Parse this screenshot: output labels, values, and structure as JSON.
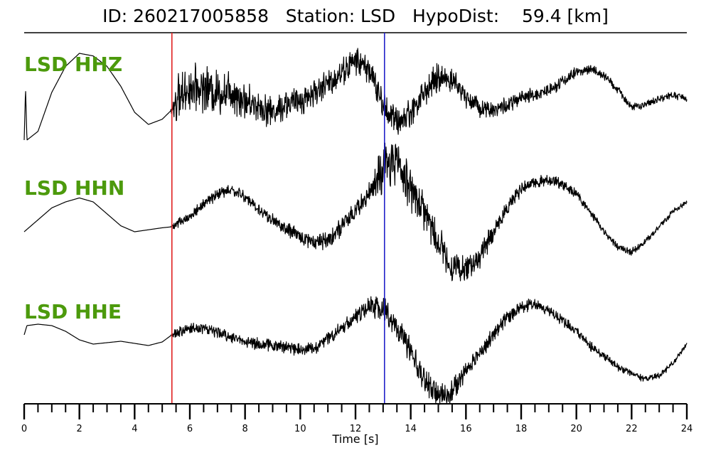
{
  "header": {
    "title": "ID: 260217005858   Station: LSD   HypoDist:    59.4 [km]"
  },
  "colors": {
    "label": "#4c9a0c",
    "p_pick": "#e02020",
    "s_pick": "#2020c8",
    "trace": "#000000"
  },
  "chart_data": {
    "type": "line",
    "title": "ID: 260217005858   Station: LSD   HypoDist:    59.4 [km]",
    "xlabel": "Time [s]",
    "ylabel": "",
    "xlim": [
      0,
      24
    ],
    "x_ticks": [
      0,
      2,
      4,
      6,
      8,
      10,
      12,
      14,
      16,
      18,
      20,
      22,
      24
    ],
    "minor_tick_step": 0.5,
    "grid": false,
    "picks": [
      {
        "phase": "P",
        "time": 5.35
      },
      {
        "phase": "S",
        "time": 13.05
      }
    ],
    "series": [
      {
        "name": "LSD HHZ",
        "envelope": [
          [
            0,
            0.0
          ],
          [
            0.05,
            0.6
          ],
          [
            0.1,
            0.0
          ],
          [
            0.5,
            0.1
          ],
          [
            1.0,
            0.55
          ],
          [
            1.5,
            0.85
          ],
          [
            2.0,
            1.0
          ],
          [
            2.5,
            0.97
          ],
          [
            3.0,
            0.85
          ],
          [
            3.5,
            0.62
          ],
          [
            4.0,
            0.32
          ],
          [
            4.5,
            0.18
          ],
          [
            5.0,
            0.24
          ],
          [
            5.35,
            0.35
          ],
          [
            5.6,
            0.5
          ],
          [
            6.0,
            0.6
          ],
          [
            6.5,
            0.6
          ],
          [
            7.0,
            0.55
          ],
          [
            7.5,
            0.58
          ],
          [
            8.0,
            0.45
          ],
          [
            8.5,
            0.4
          ],
          [
            9.0,
            0.32
          ],
          [
            9.5,
            0.42
          ],
          [
            10.0,
            0.45
          ],
          [
            10.5,
            0.55
          ],
          [
            11.0,
            0.65
          ],
          [
            11.5,
            0.78
          ],
          [
            12.0,
            0.92
          ],
          [
            12.5,
            0.82
          ],
          [
            13.0,
            0.4
          ],
          [
            13.5,
            0.2
          ],
          [
            14.0,
            0.32
          ],
          [
            14.5,
            0.55
          ],
          [
            15.0,
            0.72
          ],
          [
            15.5,
            0.7
          ],
          [
            16.0,
            0.5
          ],
          [
            16.5,
            0.38
          ],
          [
            17.0,
            0.35
          ],
          [
            17.5,
            0.4
          ],
          [
            18.0,
            0.48
          ],
          [
            18.5,
            0.52
          ],
          [
            19.0,
            0.58
          ],
          [
            19.5,
            0.68
          ],
          [
            20.0,
            0.78
          ],
          [
            20.5,
            0.82
          ],
          [
            21.0,
            0.74
          ],
          [
            21.5,
            0.58
          ],
          [
            22.0,
            0.38
          ],
          [
            22.5,
            0.4
          ],
          [
            23.0,
            0.48
          ],
          [
            23.5,
            0.52
          ],
          [
            24.0,
            0.48
          ]
        ],
        "noise": [
          [
            0,
            0
          ],
          [
            5.3,
            0
          ],
          [
            5.5,
            0.2
          ],
          [
            7.5,
            0.2
          ],
          [
            8.5,
            0.14
          ],
          [
            12.0,
            0.12
          ],
          [
            13.0,
            0.13
          ],
          [
            15.0,
            0.13
          ],
          [
            16.0,
            0.09
          ],
          [
            19.0,
            0.06
          ],
          [
            21.0,
            0.04
          ],
          [
            24.0,
            0.03
          ]
        ]
      },
      {
        "name": "LSD HHN",
        "envelope": [
          [
            0,
            0.0
          ],
          [
            0.5,
            0.12
          ],
          [
            1.0,
            0.24
          ],
          [
            1.5,
            0.3
          ],
          [
            2.0,
            0.34
          ],
          [
            2.5,
            0.3
          ],
          [
            3.0,
            0.18
          ],
          [
            3.5,
            0.06
          ],
          [
            4.0,
            0.0
          ],
          [
            4.5,
            0.02
          ],
          [
            5.0,
            0.04
          ],
          [
            5.35,
            0.05
          ],
          [
            6.0,
            0.15
          ],
          [
            6.5,
            0.28
          ],
          [
            7.0,
            0.38
          ],
          [
            7.5,
            0.42
          ],
          [
            8.0,
            0.35
          ],
          [
            8.5,
            0.22
          ],
          [
            9.0,
            0.12
          ],
          [
            9.5,
            0.02
          ],
          [
            10.0,
            -0.05
          ],
          [
            10.5,
            -0.1
          ],
          [
            11.0,
            -0.08
          ],
          [
            11.5,
            0.05
          ],
          [
            12.0,
            0.2
          ],
          [
            12.5,
            0.4
          ],
          [
            13.0,
            0.6
          ],
          [
            13.5,
            0.72
          ],
          [
            14.0,
            0.45
          ],
          [
            14.5,
            0.2
          ],
          [
            15.0,
            -0.1
          ],
          [
            15.5,
            -0.35
          ],
          [
            16.0,
            -0.38
          ],
          [
            16.5,
            -0.25
          ],
          [
            17.0,
            0.0
          ],
          [
            17.5,
            0.25
          ],
          [
            18.0,
            0.42
          ],
          [
            18.5,
            0.5
          ],
          [
            19.0,
            0.52
          ],
          [
            19.5,
            0.48
          ],
          [
            20.0,
            0.38
          ],
          [
            20.5,
            0.2
          ],
          [
            21.0,
            0.0
          ],
          [
            21.5,
            -0.15
          ],
          [
            22.0,
            -0.2
          ],
          [
            22.5,
            -0.1
          ],
          [
            23.0,
            0.05
          ],
          [
            23.5,
            0.2
          ],
          [
            24.0,
            0.3
          ]
        ],
        "noise": [
          [
            0,
            0
          ],
          [
            5.3,
            0
          ],
          [
            5.5,
            0.04
          ],
          [
            9.0,
            0.05
          ],
          [
            12.5,
            0.08
          ],
          [
            13.0,
            0.2
          ],
          [
            14.0,
            0.18
          ],
          [
            16.0,
            0.1
          ],
          [
            18.0,
            0.05
          ],
          [
            21.0,
            0.03
          ],
          [
            24.0,
            0.02
          ]
        ]
      },
      {
        "name": "LSD HHE",
        "envelope": [
          [
            0,
            0.15
          ],
          [
            0.1,
            0.28
          ],
          [
            0.5,
            0.3
          ],
          [
            1.0,
            0.28
          ],
          [
            1.5,
            0.2
          ],
          [
            2.0,
            0.08
          ],
          [
            2.5,
            0.02
          ],
          [
            3.0,
            0.04
          ],
          [
            3.5,
            0.06
          ],
          [
            4.0,
            0.03
          ],
          [
            4.5,
            0.0
          ],
          [
            5.0,
            0.05
          ],
          [
            5.35,
            0.15
          ],
          [
            6.0,
            0.24
          ],
          [
            6.5,
            0.25
          ],
          [
            7.0,
            0.18
          ],
          [
            7.5,
            0.12
          ],
          [
            8.0,
            0.06
          ],
          [
            8.5,
            0.02
          ],
          [
            9.0,
            0.0
          ],
          [
            9.5,
            -0.02
          ],
          [
            10.0,
            -0.05
          ],
          [
            10.5,
            -0.04
          ],
          [
            11.0,
            0.1
          ],
          [
            11.5,
            0.25
          ],
          [
            12.0,
            0.4
          ],
          [
            12.5,
            0.55
          ],
          [
            13.0,
            0.52
          ],
          [
            13.5,
            0.25
          ],
          [
            14.0,
            -0.1
          ],
          [
            14.5,
            -0.5
          ],
          [
            15.0,
            -0.72
          ],
          [
            15.5,
            -0.65
          ],
          [
            16.0,
            -0.35
          ],
          [
            16.5,
            -0.1
          ],
          [
            17.0,
            0.15
          ],
          [
            17.5,
            0.4
          ],
          [
            18.0,
            0.55
          ],
          [
            18.5,
            0.58
          ],
          [
            19.0,
            0.5
          ],
          [
            19.5,
            0.35
          ],
          [
            20.0,
            0.2
          ],
          [
            20.5,
            0.0
          ],
          [
            21.0,
            -0.15
          ],
          [
            21.5,
            -0.3
          ],
          [
            22.0,
            -0.4
          ],
          [
            22.5,
            -0.48
          ],
          [
            23.0,
            -0.42
          ],
          [
            23.5,
            -0.25
          ],
          [
            24.0,
            0.02
          ]
        ],
        "noise": [
          [
            0,
            0
          ],
          [
            5.3,
            0
          ],
          [
            5.5,
            0.06
          ],
          [
            10.0,
            0.07
          ],
          [
            12.0,
            0.08
          ],
          [
            13.0,
            0.13
          ],
          [
            15.0,
            0.15
          ],
          [
            16.0,
            0.1
          ],
          [
            19.0,
            0.06
          ],
          [
            22.0,
            0.04
          ],
          [
            24.0,
            0.03
          ]
        ]
      }
    ]
  }
}
